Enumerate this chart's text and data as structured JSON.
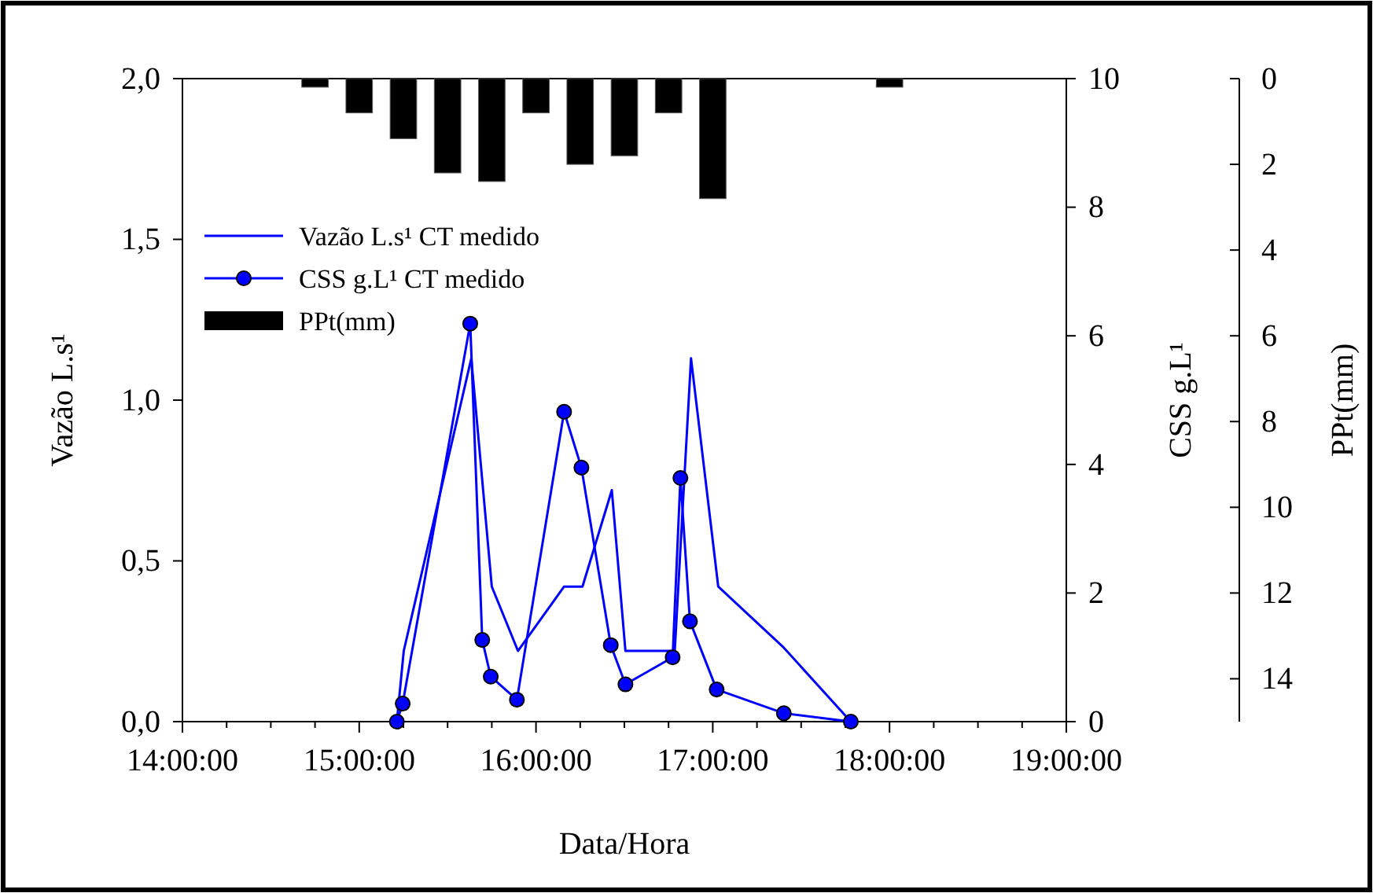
{
  "chart_data": {
    "type": "line",
    "xlabel": "Data/Hora",
    "ylabel": "Vazão L.s¹",
    "y2label": "CSS g.L¹",
    "y3label": "PPt(mm)",
    "xlim": [
      14,
      19
    ],
    "xticks": [
      {
        "value": 14,
        "label": "14:00:00"
      },
      {
        "value": 14.25,
        "label": null
      },
      {
        "value": 14.5,
        "label": null
      },
      {
        "value": 14.75,
        "label": null
      },
      {
        "value": 15,
        "label": "15:00:00"
      },
      {
        "value": 15.25,
        "label": null
      },
      {
        "value": 15.5,
        "label": null
      },
      {
        "value": 15.75,
        "label": null
      },
      {
        "value": 16,
        "label": "16:00:00"
      },
      {
        "value": 16.25,
        "label": null
      },
      {
        "value": 16.5,
        "label": null
      },
      {
        "value": 16.75,
        "label": null
      },
      {
        "value": 17,
        "label": "17:00:00"
      },
      {
        "value": 17.25,
        "label": null
      },
      {
        "value": 17.5,
        "label": null
      },
      {
        "value": 17.75,
        "label": null
      },
      {
        "value": 18,
        "label": "18:00:00"
      },
      {
        "value": 18.25,
        "label": null
      },
      {
        "value": 18.5,
        "label": null
      },
      {
        "value": 18.75,
        "label": null
      },
      {
        "value": 19,
        "label": "19:00:00"
      }
    ],
    "ylim": [
      0,
      2
    ],
    "yticks": [
      {
        "value": 0,
        "label": "0,0"
      },
      {
        "value": 0.5,
        "label": "0,5"
      },
      {
        "value": 1,
        "label": "1,0"
      },
      {
        "value": 1.5,
        "label": "1,5"
      },
      {
        "value": 2,
        "label": "2,0"
      }
    ],
    "y2lim": [
      0,
      10
    ],
    "y2ticks": [
      0,
      2,
      4,
      6,
      8,
      10
    ],
    "y3lim": [
      15,
      0
    ],
    "y3ticks": [
      0,
      2,
      4,
      6,
      8,
      10,
      12,
      14
    ],
    "legend": "top left",
    "series": [
      {
        "name": "Vazão L.s¹ CT medido",
        "color": "#0000ff",
        "marker": "none",
        "x": [
          15.213,
          15.252,
          15.634,
          15.75,
          15.898,
          16.159,
          16.263,
          16.429,
          16.506,
          16.785,
          16.877,
          17.031,
          17.402,
          17.781
        ],
        "values": [
          0,
          0.22,
          1.13,
          0.42,
          0.22,
          0.42,
          0.42,
          0.72,
          0.22,
          0.22,
          1.13,
          0.42,
          0.23,
          0
        ]
      },
      {
        "name": "CSS g.L¹ CT medido",
        "axis": "y2",
        "color": "#0000ff",
        "marker": "circle",
        "x": [
          15.213,
          15.246,
          15.628,
          15.696,
          15.744,
          15.892,
          16.159,
          16.257,
          16.423,
          16.506,
          16.773,
          16.817,
          16.871,
          17.022,
          17.402,
          17.781
        ],
        "values": [
          0,
          0.28,
          6.19,
          1.27,
          0.7,
          0.34,
          4.82,
          3.95,
          1.19,
          0.58,
          1,
          3.79,
          1.56,
          0.5,
          0.13,
          0
        ]
      },
      {
        "name": "PPt(mm)",
        "type": "bar",
        "axis": "y3",
        "color": "#000000",
        "x": [
          14.75,
          15,
          15.25,
          15.5,
          15.75,
          16,
          16.25,
          16.5,
          16.75,
          17,
          18
        ],
        "values": [
          0.2,
          0.8,
          1.4,
          2.2,
          2.4,
          0.8,
          2,
          1.8,
          0.8,
          2.8,
          0.2
        ]
      }
    ]
  }
}
